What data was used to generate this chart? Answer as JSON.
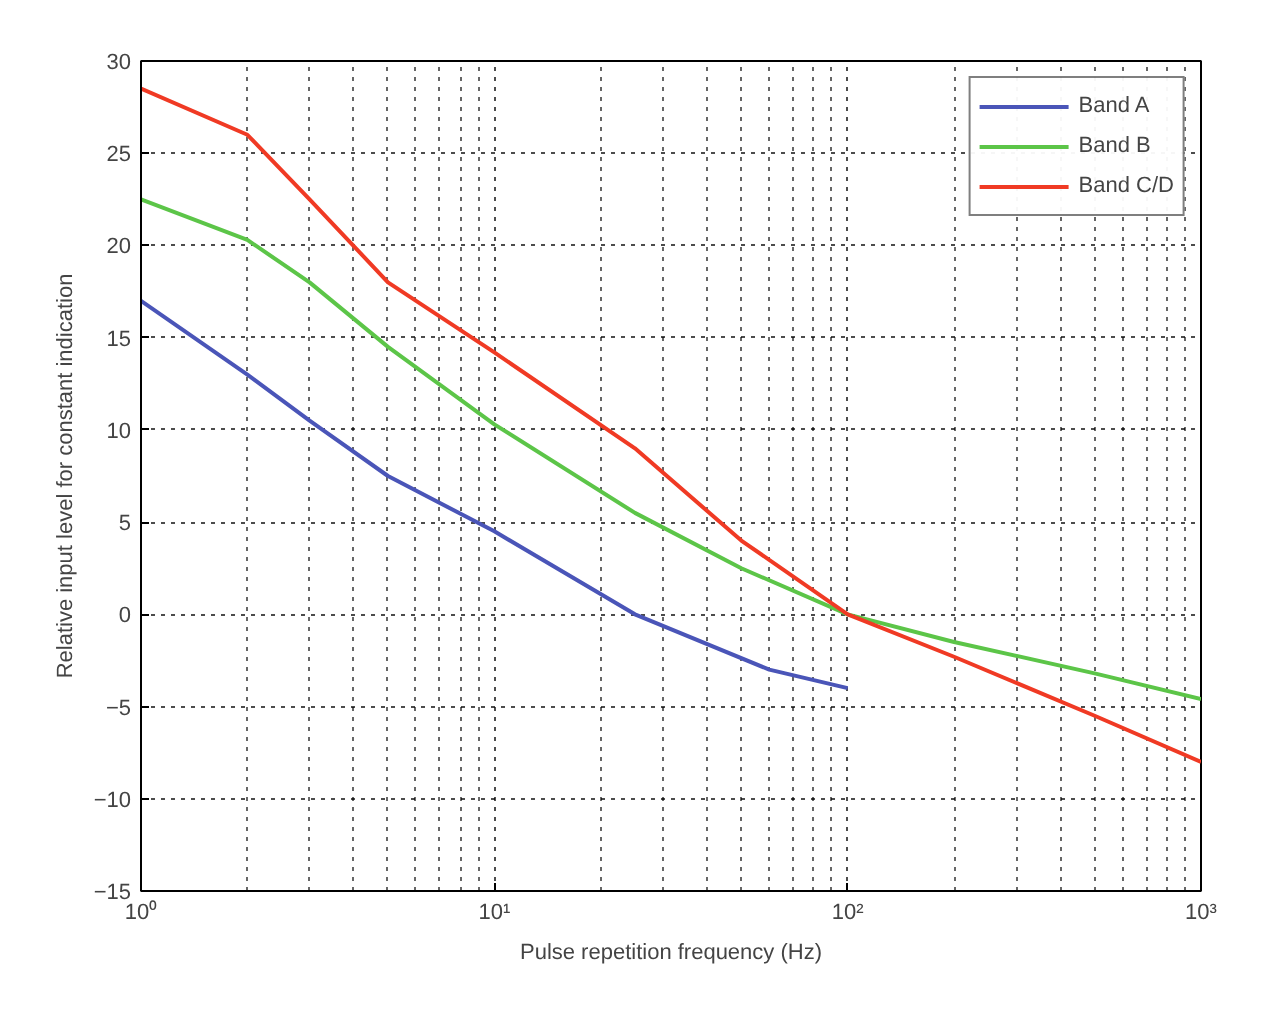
{
  "chart_data": {
    "type": "line",
    "xlabel": "Pulse repetition frequency (Hz)",
    "ylabel": "Relative input level for constant indication",
    "log": "x",
    "grid": true,
    "legend": "top right",
    "line_style": "solid",
    "marker": "none",
    "xlim": [
      1,
      1000
    ],
    "ylim": [
      -15,
      30
    ],
    "xticks": [
      {
        "value": 1,
        "label": "10⁰"
      },
      {
        "value": 10,
        "label": "10¹"
      },
      {
        "value": 100,
        "label": "10²"
      },
      {
        "value": 1000,
        "label": "10³"
      }
    ],
    "yticks": [
      -15,
      -10,
      -5,
      0,
      5,
      10,
      15,
      20,
      25,
      30
    ],
    "series": [
      {
        "name": "Band A",
        "color": "#4a55b8",
        "x": [
          1,
          2,
          3,
          5,
          10,
          25,
          60,
          100
        ],
        "values": [
          17,
          13,
          10.5,
          7.5,
          4.5,
          0,
          -3,
          -4
        ]
      },
      {
        "name": "Band B",
        "color": "#5cc548",
        "x": [
          1,
          2,
          3,
          5,
          10,
          25,
          50,
          100,
          200,
          500,
          1000
        ],
        "values": [
          22.5,
          20.3,
          18,
          14.5,
          10.3,
          5.5,
          2.5,
          0,
          -1.5,
          -3.2,
          -4.6
        ]
      },
      {
        "name": "Band C/D",
        "color": "#f03a24",
        "x": [
          1,
          2,
          3,
          5,
          10,
          25,
          50,
          100,
          200,
          500,
          1000
        ],
        "values": [
          28.5,
          26,
          22.5,
          18,
          14.2,
          9,
          4,
          0,
          -2.3,
          -5.5,
          -8
        ]
      }
    ]
  }
}
